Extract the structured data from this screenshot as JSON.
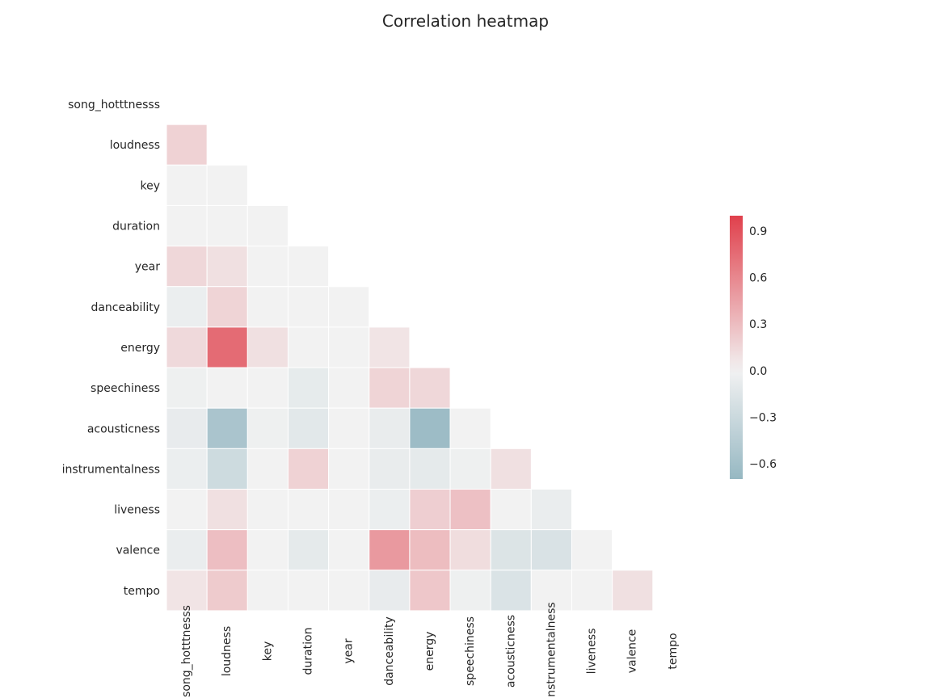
{
  "chart_data": {
    "type": "heatmap",
    "title": "Correlation heatmap",
    "mask": "upper-triangle-including-diagonal",
    "variables": [
      "song_hotttnesss",
      "loudness",
      "key",
      "duration",
      "year",
      "danceability",
      "energy",
      "speechiness",
      "acousticness",
      "instrumentalness",
      "liveness",
      "valence",
      "tempo"
    ],
    "lower_triangle": [
      [],
      [
        0.18
      ],
      [
        0.0,
        0.0
      ],
      [
        0.0,
        0.0,
        0.0
      ],
      [
        0.15,
        0.1,
        0.0,
        0.0
      ],
      [
        -0.05,
        0.17,
        0.0,
        0.0,
        0.0
      ],
      [
        0.14,
        0.76,
        0.1,
        0.0,
        0.0,
        0.08
      ],
      [
        -0.03,
        0.0,
        0.0,
        -0.09,
        0.0,
        0.17,
        0.15
      ],
      [
        -0.08,
        -0.55,
        -0.03,
        -0.12,
        0.0,
        -0.07,
        -0.65,
        0.0
      ],
      [
        -0.05,
        -0.28,
        0.0,
        0.18,
        0.0,
        -0.07,
        -0.1,
        -0.03,
        0.1
      ],
      [
        0.0,
        0.1,
        0.0,
        0.0,
        0.0,
        -0.05,
        0.2,
        0.28,
        0.0,
        -0.06
      ],
      [
        -0.06,
        0.29,
        0.0,
        -0.1,
        0.0,
        0.5,
        0.3,
        0.12,
        -0.17,
        -0.19,
        0.0
      ],
      [
        0.08,
        0.22,
        0.0,
        0.0,
        0.0,
        -0.08,
        0.24,
        -0.03,
        -0.18,
        0.0,
        0.0,
        0.1
      ]
    ],
    "colorbar": {
      "vmin": -0.7,
      "vmax": 1.0,
      "ticks": [
        0.9,
        0.6,
        0.3,
        0.0,
        -0.3,
        -0.6
      ],
      "tick_labels": [
        "0.9",
        "0.6",
        "0.3",
        "0.0",
        "−0.3",
        "−0.6"
      ],
      "neg_color": "#6f9fae",
      "center_color": "#f2f2f2",
      "pos_color": "#e0404c"
    },
    "grid": false
  }
}
